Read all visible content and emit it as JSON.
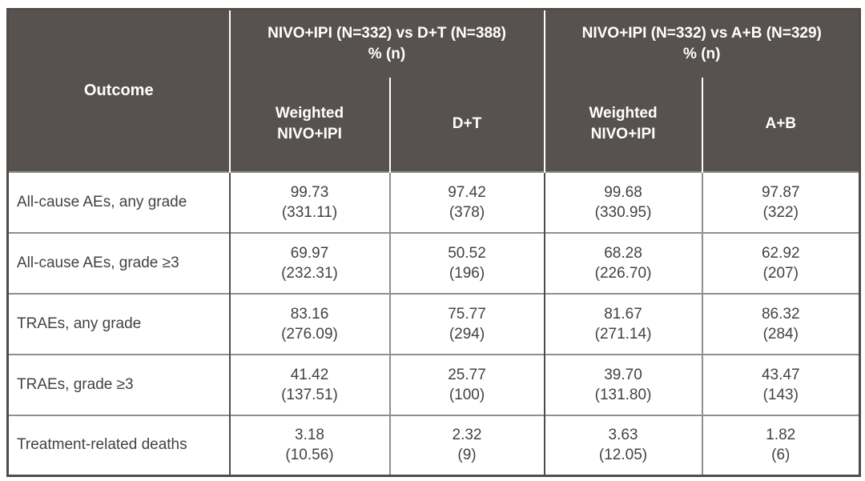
{
  "colors": {
    "header_bg": "#575250",
    "header_text": "#ffffff",
    "body_text": "#454140",
    "grid_line": "#8f8f8f",
    "frame_line": "#514c4a"
  },
  "header": {
    "outcome": "Outcome",
    "groups": [
      {
        "title": "NIVO+IPI (N=332) vs D+T (N=388)",
        "subtitle": "% (n)"
      },
      {
        "title": "NIVO+IPI (N=332) vs A+B (N=329)",
        "subtitle": "% (n)"
      }
    ],
    "subcolumns": [
      "Weighted\nNIVO+IPI",
      "D+T",
      "Weighted\nNIVO+IPI",
      "A+B"
    ]
  },
  "rows": [
    {
      "outcome": "All-cause AEs, any grade",
      "cells": [
        {
          "pct": "99.73",
          "n": "(331.11)"
        },
        {
          "pct": "97.42",
          "n": "(378)"
        },
        {
          "pct": "99.68",
          "n": "(330.95)"
        },
        {
          "pct": "97.87",
          "n": "(322)"
        }
      ]
    },
    {
      "outcome": "All-cause AEs, grade ≥3",
      "cells": [
        {
          "pct": "69.97",
          "n": "(232.31)"
        },
        {
          "pct": "50.52",
          "n": "(196)"
        },
        {
          "pct": "68.28",
          "n": "(226.70)"
        },
        {
          "pct": "62.92",
          "n": "(207)"
        }
      ]
    },
    {
      "outcome": "TRAEs, any grade",
      "cells": [
        {
          "pct": "83.16",
          "n": "(276.09)"
        },
        {
          "pct": "75.77",
          "n": "(294)"
        },
        {
          "pct": "81.67",
          "n": "(271.14)"
        },
        {
          "pct": "86.32",
          "n": "(284)"
        }
      ]
    },
    {
      "outcome": "TRAEs, grade ≥3",
      "cells": [
        {
          "pct": "41.42",
          "n": "(137.51)"
        },
        {
          "pct": "25.77",
          "n": "(100)"
        },
        {
          "pct": "39.70",
          "n": "(131.80)"
        },
        {
          "pct": "43.47",
          "n": "(143)"
        }
      ]
    },
    {
      "outcome": "Treatment-related deaths",
      "cells": [
        {
          "pct": "3.18",
          "n": "(10.56)"
        },
        {
          "pct": "2.32",
          "n": "(9)"
        },
        {
          "pct": "3.63",
          "n": "(12.05)"
        },
        {
          "pct": "1.82",
          "n": "(6)"
        }
      ]
    }
  ],
  "chart_data": {
    "type": "table",
    "column_groups": [
      "NIVO+IPI (N=332) vs D+T (N=388) % (n)",
      "NIVO+IPI (N=332) vs A+B (N=329) % (n)"
    ],
    "columns": [
      "Outcome",
      "Weighted NIVO+IPI",
      "D+T",
      "Weighted NIVO+IPI",
      "A+B"
    ],
    "rows": [
      [
        "All-cause AEs, any grade",
        "99.73 (331.11)",
        "97.42 (378)",
        "99.68 (330.95)",
        "97.87 (322)"
      ],
      [
        "All-cause AEs, grade ≥3",
        "69.97 (232.31)",
        "50.52 (196)",
        "68.28 (226.70)",
        "62.92 (207)"
      ],
      [
        "TRAEs, any grade",
        "83.16 (276.09)",
        "75.77 (294)",
        "81.67 (271.14)",
        "86.32 (284)"
      ],
      [
        "TRAEs, grade ≥3",
        "41.42 (137.51)",
        "25.77 (100)",
        "39.70 (131.80)",
        "43.47 (143)"
      ],
      [
        "Treatment-related deaths",
        "3.18 (10.56)",
        "2.32 (9)",
        "3.63 (12.05)",
        "1.82 (6)"
      ]
    ]
  }
}
